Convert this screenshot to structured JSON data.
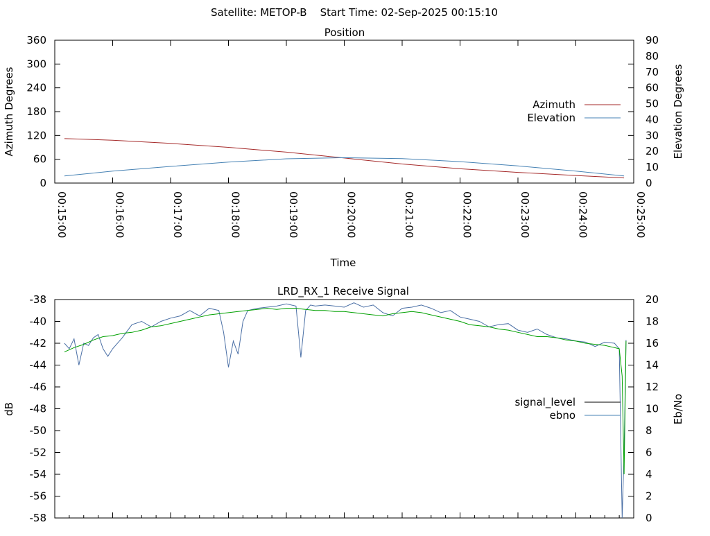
{
  "header": {
    "title": "Satellite: METOP-B    Start Time: 02-Sep-2025 00:15:10"
  },
  "chart_data": [
    {
      "type": "line",
      "title": "Position",
      "xlabel": "Time",
      "ylabel_left": "Azimuth Degrees",
      "ylabel_right": "Elevation Degrees",
      "x_ticks": [
        "00:15:00",
        "00:16:00",
        "00:17:00",
        "00:18:00",
        "00:19:00",
        "00:20:00",
        "00:21:00",
        "00:22:00",
        "00:23:00",
        "00:24:00",
        "00:25:00"
      ],
      "xlim": [
        0,
        600
      ],
      "ylim_left": [
        0,
        360
      ],
      "ylim_right": [
        0,
        90
      ],
      "y_ticks_left": [
        0,
        60,
        120,
        180,
        240,
        300,
        360
      ],
      "y_ticks_right": [
        0,
        10,
        20,
        30,
        40,
        50,
        60,
        70,
        80,
        90
      ],
      "legend_position": "right",
      "colors": {
        "azimuth": "#a52a2a",
        "elevation": "#4682b4"
      },
      "series": [
        {
          "name": "Azimuth",
          "axis": "left",
          "x": [
            10,
            60,
            120,
            180,
            240,
            300,
            360,
            420,
            480,
            540,
            590
          ],
          "y": [
            112,
            108,
            100,
            90,
            78,
            63,
            48,
            36,
            27,
            19,
            13
          ]
        },
        {
          "name": "Elevation",
          "axis": "right",
          "x": [
            10,
            60,
            120,
            180,
            240,
            300,
            360,
            420,
            480,
            540,
            590
          ],
          "y": [
            4.5,
            7.5,
            10.5,
            13.2,
            15.3,
            16.0,
            15.4,
            13.5,
            10.8,
            7.5,
            4.5
          ]
        }
      ]
    },
    {
      "type": "line",
      "title": "LRD_RX_1 Receive Signal",
      "ylabel_left": "dB",
      "ylabel_right": "Eb/No",
      "xlim": [
        0,
        600
      ],
      "ylim_left": [
        -58,
        -38
      ],
      "ylim_right": [
        0,
        20
      ],
      "y_ticks_left": [
        -38,
        -40,
        -42,
        -44,
        -46,
        -48,
        -50,
        -52,
        -54,
        -56,
        -58
      ],
      "y_ticks_right": [
        0,
        2,
        4,
        6,
        8,
        10,
        12,
        14,
        16,
        18,
        20
      ],
      "legend_position": "right",
      "legend_entries": [
        {
          "name": "signal_level",
          "color": "#000000"
        },
        {
          "name": "ebno",
          "color": "#4682b4"
        }
      ],
      "colors": {
        "signal_level": "#4a6fa5",
        "ebno": "#00a000"
      },
      "series": [
        {
          "name": "signal_level",
          "axis": "left",
          "x": [
            10,
            15,
            20,
            25,
            30,
            35,
            40,
            45,
            50,
            55,
            60,
            70,
            80,
            90,
            100,
            110,
            120,
            130,
            140,
            150,
            160,
            170,
            175,
            180,
            185,
            190,
            195,
            200,
            210,
            220,
            230,
            240,
            250,
            255,
            260,
            265,
            270,
            280,
            290,
            300,
            310,
            320,
            330,
            340,
            350,
            360,
            370,
            380,
            390,
            400,
            410,
            420,
            430,
            440,
            450,
            460,
            470,
            480,
            490,
            500,
            510,
            520,
            530,
            540,
            550,
            560,
            570,
            580,
            585,
            588,
            590,
            592
          ],
          "y": [
            -42.0,
            -42.5,
            -41.6,
            -44.0,
            -42.0,
            -42.2,
            -41.5,
            -41.2,
            -42.5,
            -43.2,
            -42.5,
            -41.5,
            -40.3,
            -40.0,
            -40.5,
            -40.0,
            -39.7,
            -39.5,
            -39.0,
            -39.5,
            -38.8,
            -39.0,
            -41.0,
            -44.2,
            -41.8,
            -43.0,
            -40.0,
            -39.0,
            -38.8,
            -38.7,
            -38.6,
            -38.4,
            -38.6,
            -43.3,
            -39.0,
            -38.5,
            -38.6,
            -38.5,
            -38.6,
            -38.7,
            -38.3,
            -38.7,
            -38.5,
            -39.2,
            -39.5,
            -38.8,
            -38.7,
            -38.5,
            -38.8,
            -39.2,
            -39.0,
            -39.6,
            -39.8,
            -40.0,
            -40.5,
            -40.3,
            -40.2,
            -40.8,
            -41.0,
            -40.7,
            -41.2,
            -41.5,
            -41.6,
            -41.8,
            -41.9,
            -42.3,
            -41.9,
            -42.0,
            -42.5,
            -58.0,
            -52.0,
            -41.7
          ]
        },
        {
          "name": "ebno",
          "axis": "right",
          "x": [
            10,
            20,
            30,
            40,
            50,
            60,
            70,
            80,
            90,
            100,
            110,
            120,
            130,
            140,
            150,
            160,
            170,
            180,
            190,
            200,
            210,
            220,
            230,
            240,
            250,
            260,
            270,
            280,
            290,
            300,
            310,
            320,
            330,
            340,
            350,
            360,
            370,
            380,
            390,
            400,
            410,
            420,
            430,
            440,
            450,
            460,
            470,
            480,
            490,
            500,
            510,
            520,
            530,
            540,
            550,
            560,
            570,
            580,
            585,
            588,
            590,
            592
          ],
          "y": [
            15.2,
            15.6,
            15.9,
            16.3,
            16.6,
            16.7,
            16.9,
            17.0,
            17.2,
            17.5,
            17.6,
            17.8,
            18.0,
            18.2,
            18.4,
            18.6,
            18.7,
            18.8,
            18.9,
            19.0,
            19.1,
            19.2,
            19.1,
            19.2,
            19.2,
            19.1,
            19.0,
            19.0,
            18.9,
            18.9,
            18.8,
            18.7,
            18.6,
            18.5,
            18.7,
            18.8,
            18.9,
            18.8,
            18.6,
            18.4,
            18.2,
            18.0,
            17.7,
            17.6,
            17.5,
            17.3,
            17.2,
            17.0,
            16.8,
            16.6,
            16.6,
            16.5,
            16.3,
            16.2,
            16.0,
            15.9,
            15.8,
            15.6,
            15.5,
            13.0,
            4.0,
            16.2
          ]
        }
      ]
    }
  ]
}
